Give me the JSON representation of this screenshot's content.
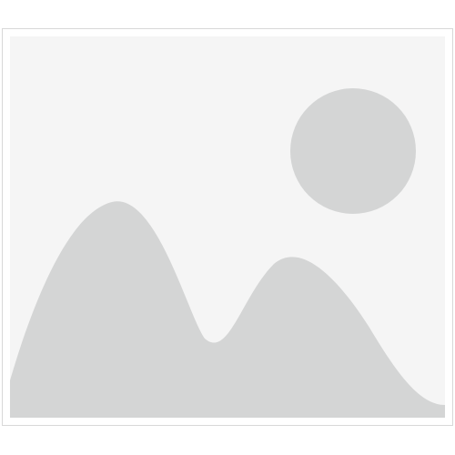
{
  "placeholder": {
    "icon": "image-placeholder-icon",
    "colors": {
      "background": "#ffffff",
      "border": "#d8d8d8",
      "panel": "#f5f5f5",
      "shape": "#d4d5d5"
    }
  }
}
